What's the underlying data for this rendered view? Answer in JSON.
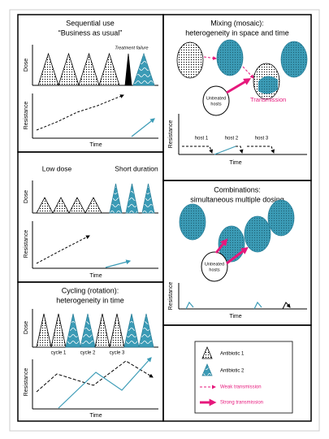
{
  "sequential": {
    "title": "Sequential use",
    "subtitle": "“Business as usual”",
    "annotation": "Treatment failure",
    "dose_axis": "Dose",
    "resistance_axis": "Resistance",
    "time_axis": "Time"
  },
  "low_dose": {
    "left_label": "Low dose",
    "right_label": "Short duration",
    "dose_axis": "Dose",
    "resistance_axis": "Resistance",
    "time_axis": "Time"
  },
  "cycling": {
    "title": [
      "Cycling (rotation):",
      "heterogeneity in time"
    ],
    "dose_axis": "Dose",
    "resistance_axis": "Resistance",
    "time_axis": "Time",
    "cycles": [
      "cycle 1",
      "cycle 2",
      "cycle 3"
    ]
  },
  "mixing": {
    "title": [
      "Mixing (mosaic):",
      "heterogeneity in space and time"
    ],
    "untreated_hosts": [
      "Untreated",
      "hosts"
    ],
    "transmission": "Transmission",
    "resistance_axis": "Resistance",
    "time_axis": "Time",
    "hosts": [
      "host 1",
      "host 2",
      "host 3"
    ]
  },
  "combinations": {
    "title": [
      "Combinations:",
      "simultaneous multiple dosing"
    ],
    "untreated_hosts": [
      "Untreated",
      "hosts"
    ],
    "resistance_axis": "Resistance",
    "time_axis": "Time"
  },
  "legend": {
    "items": [
      "Antibiotic 1",
      "Antibiotic 2",
      "Weak transmission",
      "Strong transmission"
    ]
  }
}
